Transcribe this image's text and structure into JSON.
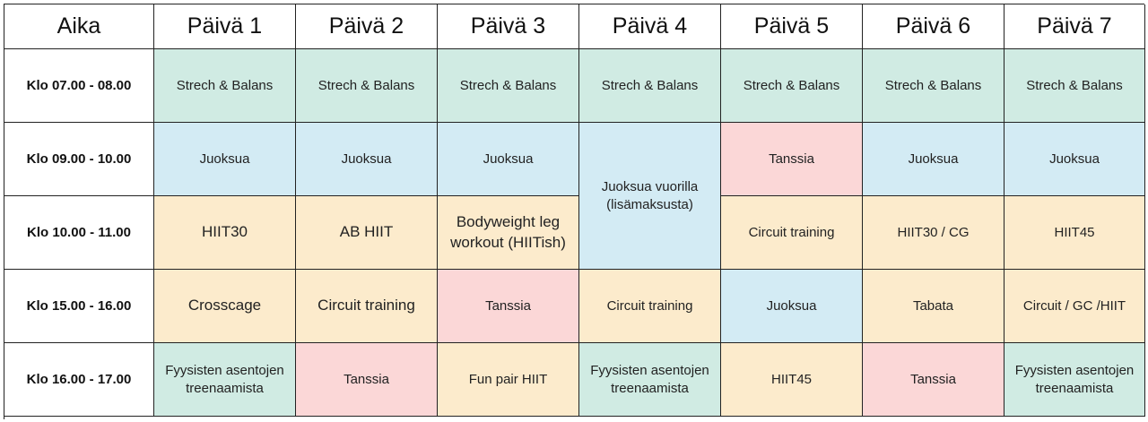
{
  "header": {
    "time_col": "Aika",
    "days": [
      "Päivä 1",
      "Päivä 2",
      "Päivä 3",
      "Päivä 4",
      "Päivä 5",
      "Päivä 6",
      "Päivä 7"
    ]
  },
  "rows": [
    {
      "time": "Klo 07.00 - 08.00",
      "cells": [
        "Strech & Balans",
        "Strech & Balans",
        "Strech & Balans",
        "Strech & Balans",
        "Strech & Balans",
        "Strech & Balans",
        "Strech & Balans"
      ]
    },
    {
      "time": "Klo 09.00 - 10.00",
      "cells": [
        "Juoksua",
        "Juoksua",
        "Juoksua",
        "Juoksua vuorilla (lisämaksusta)",
        "Tanssia",
        "Juoksua",
        "Juoksua"
      ]
    },
    {
      "time": "Klo 10.00 - 11.00",
      "cells": [
        "HIIT30",
        "AB HIIT",
        "Bodyweight leg workout (HIITish)",
        "",
        "Circuit training",
        "HIIT30 / CG",
        "HIIT45"
      ]
    },
    {
      "time": "Klo 15.00 - 16.00",
      "cells": [
        "Crosscage",
        "Circuit training",
        "Tanssia",
        "Circuit training",
        "Juoksua",
        "Tabata",
        "Circuit / GC /HIIT"
      ]
    },
    {
      "time": "Klo 16.00 - 17.00",
      "cells": [
        "Fyysisten asentojen treenaamista",
        "Tanssia",
        "Fun pair HIIT",
        "Fyysisten asentojen treenaamista",
        "HIIT45",
        "Tanssia",
        "Fyysisten asentojen treenaamista"
      ]
    }
  ],
  "colors": {
    "stretch_green": "#d0ebe3",
    "run_blue": "#d3ebf4",
    "hiit_orange": "#fcebcc",
    "dance_pink": "#fbd7d7"
  }
}
